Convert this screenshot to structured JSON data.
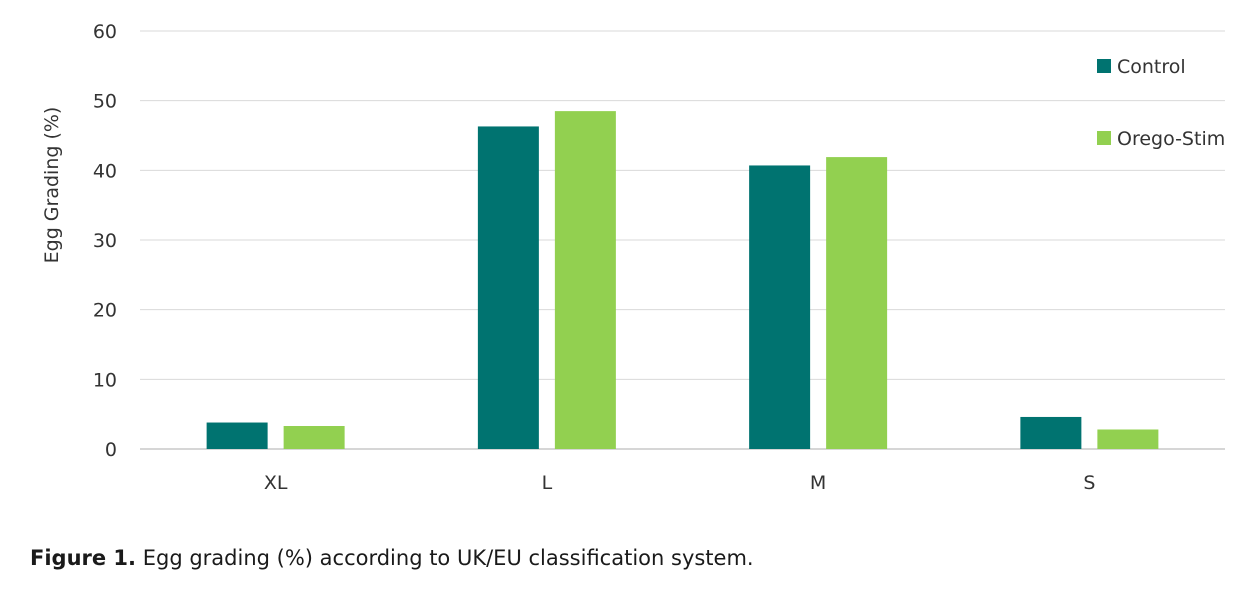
{
  "chart_data": {
    "type": "bar",
    "categories": [
      "XL",
      "L",
      "M",
      "S"
    ],
    "series": [
      {
        "name": "Control",
        "color": "#007370",
        "values": [
          3.8,
          46.3,
          40.7,
          4.6
        ]
      },
      {
        "name": "Orego-Stim",
        "color": "#92d050",
        "values": [
          3.3,
          48.5,
          41.9,
          2.8
        ]
      }
    ],
    "ylabel": "Egg Grading (%)",
    "xlabel": "",
    "ylim": [
      0,
      60
    ],
    "yticks": [
      "0",
      "10",
      "20",
      "30",
      "40",
      "50",
      "60"
    ],
    "grid": true,
    "legend_position": "top-right"
  },
  "caption": {
    "label": "Figure 1.",
    "text": "Egg grading (%) according to UK/EU classification system."
  }
}
